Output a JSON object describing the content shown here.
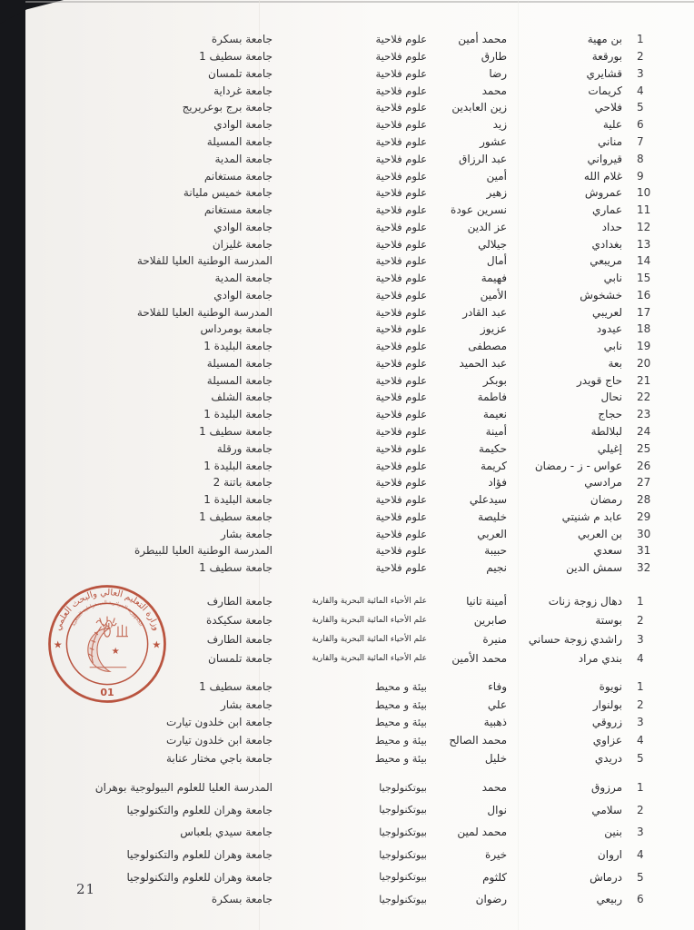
{
  "page": {
    "number": "21"
  },
  "stamp": {
    "ministry_text": "وزارة التعليم العالي والبحث العلمي",
    "republic_text": "الجمهورية الجزائرية الديمقراطية الشعبية",
    "office_number": "01",
    "star_glyph": "★",
    "emblem_star_glyph": "★",
    "accent_color": "#bd4a33"
  },
  "table": {
    "sections": [
      {
        "specialty": "علوم فلاحية",
        "rows": [
          {
            "num": "1",
            "family_name": "بن مهية",
            "first_name": "محمد أمين",
            "university": "جامعة بسكرة"
          },
          {
            "num": "2",
            "family_name": "بورقعة",
            "first_name": "طارق",
            "university": "جامعة سطيف 1"
          },
          {
            "num": "3",
            "family_name": "قشايري",
            "first_name": "رضا",
            "university": "جامعة تلمسان"
          },
          {
            "num": "4",
            "family_name": "كريمات",
            "first_name": "محمد",
            "university": "جامعة غرداية"
          },
          {
            "num": "5",
            "family_name": "فلاحي",
            "first_name": "زين العابدين",
            "university": "جامعة برج بوعريريج"
          },
          {
            "num": "6",
            "family_name": "علية",
            "first_name": "زيد",
            "university": "جامعة الوادي"
          },
          {
            "num": "7",
            "family_name": "مناني",
            "first_name": "عشور",
            "university": "جامعة المسيلة"
          },
          {
            "num": "8",
            "family_name": "قيرواني",
            "first_name": "عبد الرزاق",
            "university": "جامعة المدية"
          },
          {
            "num": "9",
            "family_name": "غلام الله",
            "first_name": "أمين",
            "university": "جامعة مستغانم"
          },
          {
            "num": "10",
            "family_name": "عمروش",
            "first_name": "زهير",
            "university": "جامعة خميس مليانة"
          },
          {
            "num": "11",
            "family_name": "عماري",
            "first_name": "نسرين عودة",
            "university": "جامعة مستغانم"
          },
          {
            "num": "12",
            "family_name": "حداد",
            "first_name": "عز الدين",
            "university": "جامعة الوادي"
          },
          {
            "num": "13",
            "family_name": "بغدادي",
            "first_name": "جيلالي",
            "university": "جامعة غليزان"
          },
          {
            "num": "14",
            "family_name": "مريبعي",
            "first_name": "أمال",
            "university": "المدرسة الوطنية العليا للفلاحة"
          },
          {
            "num": "15",
            "family_name": "نابي",
            "first_name": "فهيمة",
            "university": "جامعة المدية"
          },
          {
            "num": "16",
            "family_name": "خشخوش",
            "first_name": "الأمين",
            "university": "جامعة الوادي"
          },
          {
            "num": "17",
            "family_name": "لعريبي",
            "first_name": "عبد القادر",
            "university": "المدرسة الوطنية العليا للفلاحة"
          },
          {
            "num": "18",
            "family_name": "عيدود",
            "first_name": "عزيوز",
            "university": "جامعة بومرداس"
          },
          {
            "num": "19",
            "family_name": "نابي",
            "first_name": "مصطفى",
            "university": "جامعة البليدة 1"
          },
          {
            "num": "20",
            "family_name": "بعة",
            "first_name": "عبد الحميد",
            "university": "جامعة المسيلة"
          },
          {
            "num": "21",
            "family_name": "حاج قويدر",
            "first_name": "بوبكر",
            "university": "جامعة المسيلة"
          },
          {
            "num": "22",
            "family_name": "نحال",
            "first_name": "فاطمة",
            "university": "جامعة الشلف"
          },
          {
            "num": "23",
            "family_name": "حجاج",
            "first_name": "نعيمة",
            "university": "جامعة البليدة 1"
          },
          {
            "num": "24",
            "family_name": "لبلالطة",
            "first_name": "أمينة",
            "university": "جامعة سطيف 1"
          },
          {
            "num": "25",
            "family_name": "إغيلي",
            "first_name": "حكيمة",
            "university": "جامعة ورقلة"
          },
          {
            "num": "26",
            "family_name": "عواس - ز - رمضان",
            "first_name": "كريمة",
            "university": "جامعة البليدة 1"
          },
          {
            "num": "27",
            "family_name": "مرادسي",
            "first_name": "فؤاد",
            "university": "جامعة باتنة 2"
          },
          {
            "num": "28",
            "family_name": "رمضان",
            "first_name": "سيدعلي",
            "university": "جامعة البليدة 1"
          },
          {
            "num": "29",
            "family_name": "عابد م شنيتي",
            "first_name": "خليصة",
            "university": "جامعة سطيف 1"
          },
          {
            "num": "30",
            "family_name": "بن العربي",
            "first_name": "العربي",
            "university": "جامعة بشار"
          },
          {
            "num": "31",
            "family_name": "سعدي",
            "first_name": "حبيبة",
            "university": "المدرسة الوطنية العليا للبيطرة"
          },
          {
            "num": "32",
            "family_name": "سمش الدين",
            "first_name": "نجيم",
            "university": "جامعة سطيف 1"
          }
        ]
      },
      {
        "specialty": "علم الأحياء المائية البحرية والقارية",
        "rows": [
          {
            "num": "1",
            "family_name": "دهال زوجة زنات",
            "first_name": "أمينة تانيا",
            "university": "جامعة الطارف"
          },
          {
            "num": "2",
            "family_name": "بوستة",
            "first_name": "صابرين",
            "university": "جامعة سكيكدة"
          },
          {
            "num": "3",
            "family_name": "راشدي زوجة حساني",
            "first_name": "منيرة",
            "university": "جامعة الطارف"
          },
          {
            "num": "4",
            "family_name": "بندي مراد",
            "first_name": "محمد الأمين",
            "university": "جامعة تلمسان"
          }
        ]
      },
      {
        "specialty": "بيئة و محيط",
        "rows": [
          {
            "num": "1",
            "family_name": "نويوة",
            "first_name": "وفاء",
            "university": "جامعة سطيف 1"
          },
          {
            "num": "2",
            "family_name": "بولنوار",
            "first_name": "علي",
            "university": "جامعة بشار"
          },
          {
            "num": "3",
            "family_name": "زروقي",
            "first_name": "ذهبية",
            "university": "جامعة ابن خلدون تيارت"
          },
          {
            "num": "4",
            "family_name": "عزاوي",
            "first_name": "محمد الصالح",
            "university": "جامعة ابن خلدون تيارت"
          },
          {
            "num": "5",
            "family_name": "دريدي",
            "first_name": "خليل",
            "university": "جامعة باجي مختار عنابة"
          }
        ]
      },
      {
        "specialty": "بيوتكنولوجيا",
        "rows": [
          {
            "num": "1",
            "family_name": "مرزوق",
            "first_name": "محمد",
            "university": "المدرسة العليا للعلوم البيولوجية بوهران"
          },
          {
            "num": "2",
            "family_name": "سلامي",
            "first_name": "نوال",
            "university": "جامعة وهران للعلوم والتكنولوجيا"
          },
          {
            "num": "3",
            "family_name": "بنين",
            "first_name": "محمد لمين",
            "university": "جامعة سيدي بلعباس"
          },
          {
            "num": "4",
            "family_name": "اروان",
            "first_name": "خيرة",
            "university": "جامعة وهران للعلوم والتكنولوجيا"
          },
          {
            "num": "5",
            "family_name": "درماش",
            "first_name": "كلثوم",
            "university": "جامعة وهران للعلوم والتكنولوجيا"
          },
          {
            "num": "6",
            "family_name": "ربيعي",
            "first_name": "رضوان",
            "university": "جامعة بسكرة"
          }
        ]
      }
    ]
  }
}
